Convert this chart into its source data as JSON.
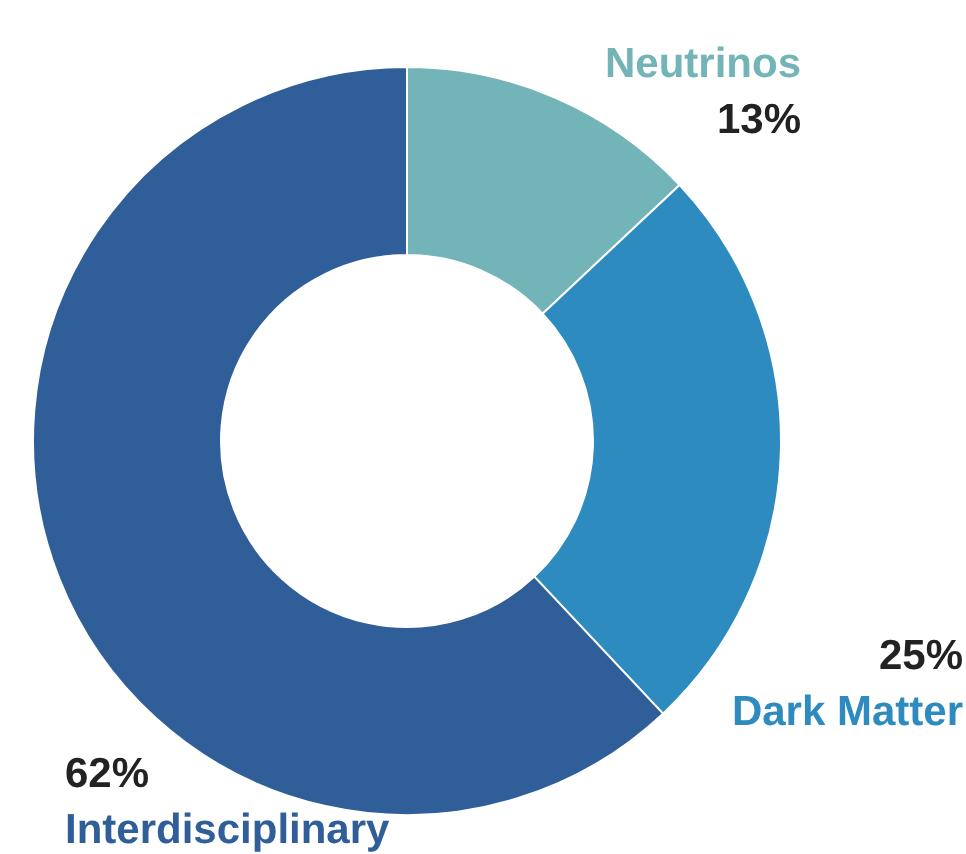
{
  "chart_data": {
    "type": "donut",
    "categories": [
      "Neutrinos",
      "Dark Matter",
      "Interdisciplinary"
    ],
    "values": [
      13,
      25,
      62
    ],
    "colors": [
      "#72b4b8",
      "#2e8bc0",
      "#2f5e99"
    ],
    "value_labels": [
      "13%",
      "25%",
      "62%"
    ]
  }
}
